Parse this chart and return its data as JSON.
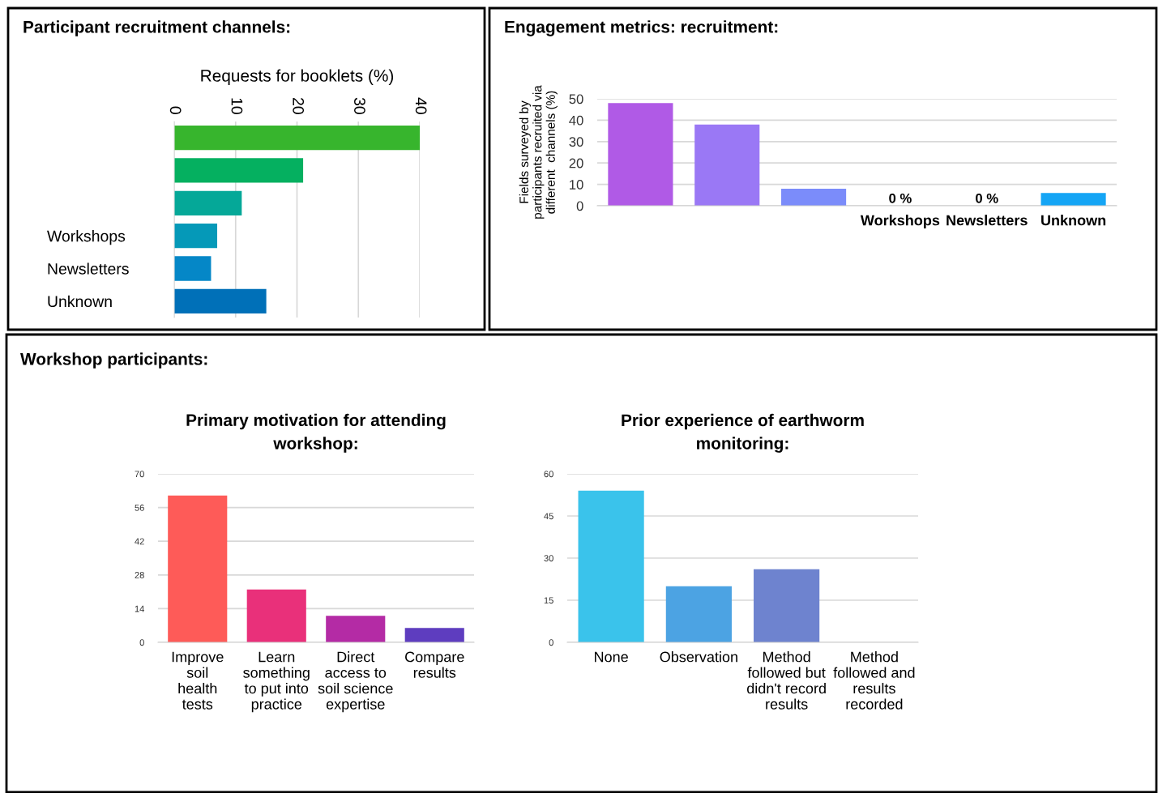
{
  "chart_data": [
    {
      "type": "bar",
      "title": "Participant recruitment channels:",
      "xlabel": "Requests for booklets (%)",
      "orientation": "horizontal",
      "categories": [
        null,
        null,
        null,
        "Workshops",
        "Newsletters",
        "Unknown"
      ],
      "values": [
        40,
        21,
        11,
        7,
        6,
        15
      ],
      "colors": [
        "#37b52d",
        "#05b060",
        "#05a898",
        "#0599b8",
        "#0587c7",
        "#0070b8"
      ],
      "xlim": [
        0,
        40
      ],
      "xticks": [
        0,
        10,
        20,
        30,
        40
      ],
      "grid": "x"
    },
    {
      "type": "bar",
      "title": "Engagement metrics: recruitment:",
      "ylabel": "Fields surveyed by\nparticipants recruited via\ndifferent  channels (%)",
      "categories": [
        null,
        null,
        null,
        "Workshops",
        "Newsletters",
        "Unknown"
      ],
      "values": [
        48,
        38,
        8,
        0,
        0,
        6
      ],
      "value_labels": [
        null,
        null,
        null,
        "0 %",
        "0 %",
        null
      ],
      "colors": [
        "#b05ae6",
        "#9a78f5",
        "#7b8cfa",
        "#7b8cfa",
        "#7b8cfa",
        "#15a5f5"
      ],
      "ylim": [
        0,
        50
      ],
      "yticks": [
        0,
        10,
        20,
        30,
        40,
        50
      ],
      "grid": "y"
    },
    {
      "type": "bar",
      "title": "Primary motivation for attending\nworkshop:",
      "annotations": [
        "Workshop participants:"
      ],
      "categories": [
        "Improve\nsoil\nhealth\ntests",
        "Learn\nsomething\nto put into\npractice",
        "Direct\naccess to\nsoil science\nexpertise",
        "Compare\nresults"
      ],
      "values": [
        61,
        22,
        11,
        6
      ],
      "colors": [
        "#fe5b58",
        "#e9307a",
        "#b42ba5",
        "#5e3dbf"
      ],
      "ylim": [
        0,
        70
      ],
      "yticks": [
        0,
        14,
        28,
        42,
        56,
        70
      ],
      "grid": "y"
    },
    {
      "type": "bar",
      "title": "Prior experience of earthworm\nmonitoring:",
      "categories": [
        "None",
        "Observation",
        "Method\nfollowed but\ndidn't record\nresults",
        "Method\nfollowed and\nresults\nrecorded"
      ],
      "values": [
        54,
        20,
        26,
        0
      ],
      "colors": [
        "#3ac3eb",
        "#4ca3e3",
        "#6e83cf",
        "#6e83cf"
      ],
      "ylim": [
        0,
        60
      ],
      "yticks": [
        0,
        15,
        30,
        45,
        60
      ],
      "grid": "y"
    }
  ]
}
